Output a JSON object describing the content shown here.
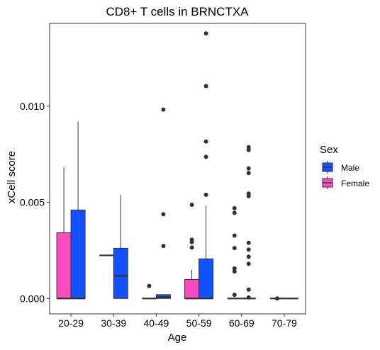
{
  "chart_data": {
    "type": "boxplot",
    "title": "CD8+ T cells in BRNCTXA",
    "xlabel": "Age",
    "ylabel": "xCell score",
    "ylim": [
      -0.0008,
      0.0143
    ],
    "yticks": [
      0.0,
      0.005,
      0.01
    ],
    "ytick_labels": [
      "0.000",
      "0.005",
      "0.010"
    ],
    "categories": [
      "20-29",
      "30-39",
      "40-49",
      "50-59",
      "60-69",
      "70-79"
    ],
    "legend": {
      "title": "Sex",
      "position": "right",
      "entries": [
        {
          "label": "Male",
          "color": "#1352fb"
        },
        {
          "label": "Female",
          "color": "#fc4bc0"
        }
      ]
    },
    "series": [
      {
        "name": "Female",
        "color": "#fc4bc0",
        "boxes": [
          {
            "category": "20-29",
            "min": 0.0,
            "q1": 0.0,
            "median": 0.0,
            "q3": 0.00342,
            "max": 0.00683,
            "outliers": []
          },
          {
            "category": "30-39",
            "min": 0.00224,
            "q1": 0.00224,
            "median": 0.00224,
            "q3": 0.00224,
            "max": 0.00224,
            "outliers": []
          },
          {
            "category": "40-49",
            "min": 0.0,
            "q1": 0.0,
            "median": 0.0,
            "q3": 0.0,
            "max": 0.0,
            "outliers": [
              0.00065
            ]
          },
          {
            "category": "50-59",
            "min": 0.0,
            "q1": 0.0,
            "median": 0.0,
            "q3": 0.00099,
            "max": 0.00149,
            "outliers": [
              0.00487,
              0.00306,
              0.00293,
              0.00265
            ]
          },
          {
            "category": "60-69",
            "min": 0.0,
            "q1": 0.0,
            "median": 0.0,
            "q3": 0.0,
            "max": 0.0,
            "outliers": [
              0.00469,
              0.00445,
              0.00327,
              0.00262,
              0.00156,
              0.0014,
              0.00019
            ]
          },
          {
            "category": "70-79",
            "min": 0.0,
            "q1": 0.0,
            "median": 0.0,
            "q3": 0.0,
            "max": 0.0,
            "outliers": [
              0.0
            ]
          }
        ]
      },
      {
        "name": "Male",
        "color": "#1352fb",
        "boxes": [
          {
            "category": "20-29",
            "min": 0.0,
            "q1": 0.0,
            "median": 0.0,
            "q3": 0.0046,
            "max": 0.0092,
            "outliers": []
          },
          {
            "category": "30-39",
            "min": 0.0,
            "q1": 0.0,
            "median": 0.00118,
            "q3": 0.00261,
            "max": 0.00538,
            "outliers": []
          },
          {
            "category": "40-49",
            "min": 0.0,
            "q1": 0.0,
            "median": 8e-05,
            "q3": 0.0002,
            "max": 0.0002,
            "outliers": [
              0.00982,
              0.00438,
              0.00273
            ]
          },
          {
            "category": "50-59",
            "min": 0.0,
            "q1": 0.0,
            "median": 0.0,
            "q3": 0.00206,
            "max": 0.00482,
            "outliers": [
              0.01378,
              0.01104,
              0.00816,
              0.00736,
              0.00539
            ]
          },
          {
            "category": "60-69",
            "min": 0.0,
            "q1": 0.0,
            "median": 0.0,
            "q3": 0.0,
            "max": 0.0,
            "outliers": [
              0.00786,
              0.00772,
              0.00676,
              0.00652,
              0.00545,
              0.00532,
              0.00289,
              0.00254,
              0.00217,
              0.0018,
              0.00046,
              5e-05
            ]
          },
          {
            "category": "70-79",
            "min": 0.0,
            "q1": 0.0,
            "median": 0.0,
            "q3": 0.0,
            "max": 0.0,
            "outliers": []
          }
        ]
      }
    ]
  }
}
